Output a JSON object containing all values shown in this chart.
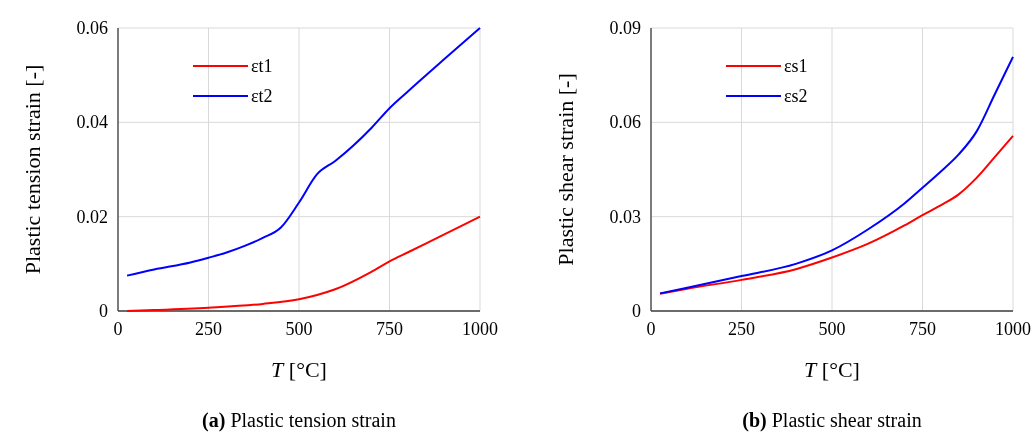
{
  "chart_data": [
    {
      "type": "line",
      "title": "(a) Plastic tension strain",
      "xlabel": "T [°C]",
      "ylabel": "Plastic tension strain [-]",
      "xlim": [
        0,
        1000
      ],
      "xticks": [
        0,
        250,
        500,
        750,
        1000
      ],
      "ylim": [
        0,
        0.06
      ],
      "yticks": [
        0,
        0.02,
        0.04,
        0.06
      ],
      "grid": true,
      "legend": "top left",
      "line_style": "solid",
      "series": [
        {
          "name": "εt1",
          "color": "#ff0000",
          "x": [
            25,
            100,
            250,
            400,
            500,
            550,
            600,
            700,
            750,
            800,
            900,
            1000
          ],
          "values": [
            0,
            0.0002,
            0.0007,
            0.0015,
            0.0025,
            0.0034,
            0.0046,
            0.0083,
            0.0105,
            0.0124,
            0.0162,
            0.02
          ]
        },
        {
          "name": "εt2",
          "color": "#0000ff",
          "x": [
            25,
            100,
            200,
            250,
            300,
            350,
            400,
            450,
            500,
            550,
            600,
            700,
            750,
            800,
            900,
            1000
          ],
          "values": [
            0.0075,
            0.0088,
            0.0103,
            0.0113,
            0.0124,
            0.0138,
            0.0155,
            0.0177,
            0.023,
            0.029,
            0.0318,
            0.0388,
            0.043,
            0.0465,
            0.0533,
            0.06
          ]
        }
      ]
    },
    {
      "type": "line",
      "title": "(b) Plastic shear strain",
      "xlabel": "T [°C]",
      "ylabel": "Plastic shear strain [-]",
      "xlim": [
        0,
        1000
      ],
      "xticks": [
        0,
        250,
        500,
        750,
        1000
      ],
      "ylim": [
        0,
        0.09
      ],
      "yticks": [
        0,
        0.03,
        0.06,
        0.09
      ],
      "grid": true,
      "legend": "top left",
      "line_style": "solid",
      "series": [
        {
          "name": "εs1",
          "color": "#ff0000",
          "x": [
            25,
            100,
            250,
            400,
            500,
            600,
            700,
            750,
            800,
            850,
            900,
            950,
            1000
          ],
          "values": [
            0.0055,
            0.0071,
            0.0099,
            0.0133,
            0.017,
            0.0214,
            0.0272,
            0.0305,
            0.0336,
            0.0371,
            0.0424,
            0.049,
            0.0557
          ]
        },
        {
          "name": "εs2",
          "color": "#0000ff",
          "x": [
            25,
            100,
            250,
            400,
            500,
            600,
            700,
            750,
            800,
            850,
            900,
            950,
            1000
          ],
          "values": [
            0.0056,
            0.0074,
            0.0111,
            0.015,
            0.0193,
            0.026,
            0.0342,
            0.0392,
            0.0443,
            0.0498,
            0.0572,
            0.069,
            0.0808
          ]
        }
      ]
    }
  ]
}
